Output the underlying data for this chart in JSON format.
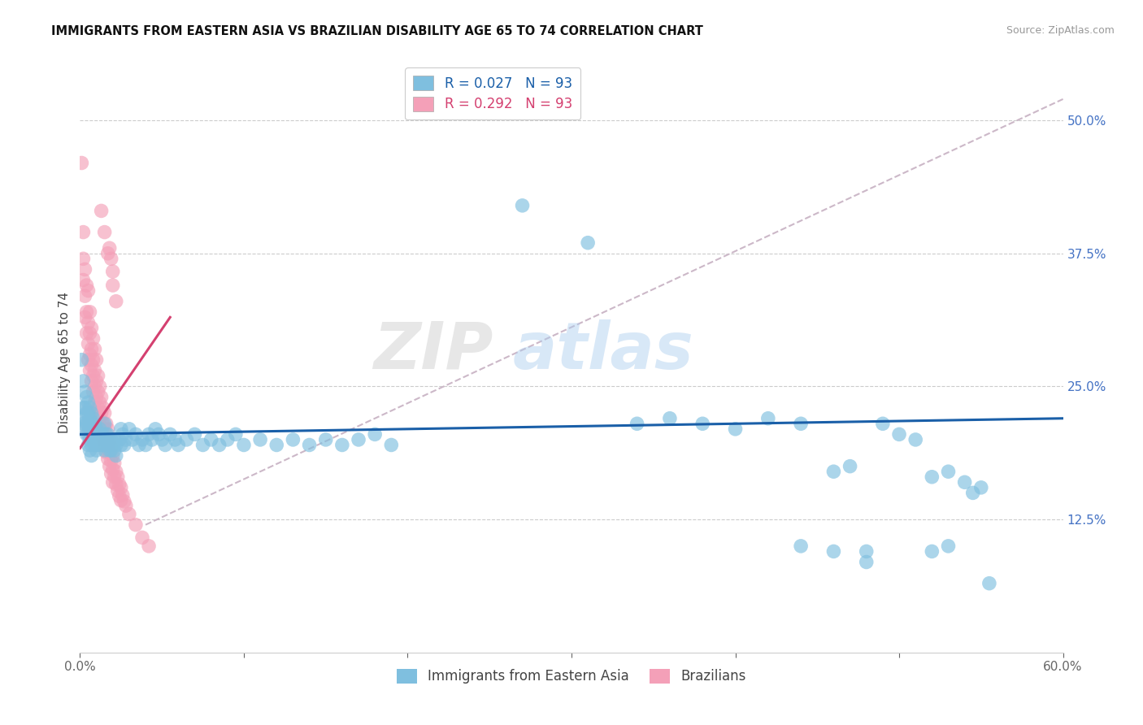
{
  "title": "IMMIGRANTS FROM EASTERN ASIA VS BRAZILIAN DISABILITY AGE 65 TO 74 CORRELATION CHART",
  "source": "Source: ZipAtlas.com",
  "ylabel": "Disability Age 65 to 74",
  "x_min": 0.0,
  "x_max": 0.6,
  "y_min": 0.0,
  "y_max": 0.545,
  "x_ticks": [
    0.0,
    0.1,
    0.2,
    0.3,
    0.4,
    0.5,
    0.6
  ],
  "x_tick_labels": [
    "0.0%",
    "",
    "",
    "",
    "",
    "",
    "60.0%"
  ],
  "y_tick_labels_right": [
    "50.0%",
    "37.5%",
    "25.0%",
    "12.5%"
  ],
  "y_ticks_right": [
    0.5,
    0.375,
    0.25,
    0.125
  ],
  "color_blue": "#7fbfdf",
  "color_pink": "#f4a0b8",
  "color_blue_line": "#1a5fa8",
  "color_pink_line": "#d44070",
  "color_dashed_line": "#ccb8c8",
  "watermark_zip": "ZIP",
  "watermark_atlas": "atlas",
  "blue_points": [
    [
      0.001,
      0.275
    ],
    [
      0.002,
      0.255
    ],
    [
      0.002,
      0.23
    ],
    [
      0.002,
      0.215
    ],
    [
      0.003,
      0.245
    ],
    [
      0.003,
      0.23
    ],
    [
      0.003,
      0.22
    ],
    [
      0.003,
      0.21
    ],
    [
      0.004,
      0.24
    ],
    [
      0.004,
      0.225
    ],
    [
      0.004,
      0.215
    ],
    [
      0.004,
      0.205
    ],
    [
      0.005,
      0.235
    ],
    [
      0.005,
      0.225
    ],
    [
      0.005,
      0.215
    ],
    [
      0.005,
      0.205
    ],
    [
      0.005,
      0.195
    ],
    [
      0.006,
      0.23
    ],
    [
      0.006,
      0.22
    ],
    [
      0.006,
      0.21
    ],
    [
      0.006,
      0.2
    ],
    [
      0.006,
      0.19
    ],
    [
      0.007,
      0.225
    ],
    [
      0.007,
      0.215
    ],
    [
      0.007,
      0.205
    ],
    [
      0.007,
      0.195
    ],
    [
      0.007,
      0.185
    ],
    [
      0.008,
      0.22
    ],
    [
      0.008,
      0.21
    ],
    [
      0.008,
      0.2
    ],
    [
      0.009,
      0.215
    ],
    [
      0.009,
      0.205
    ],
    [
      0.009,
      0.195
    ],
    [
      0.01,
      0.21
    ],
    [
      0.01,
      0.2
    ],
    [
      0.01,
      0.19
    ],
    [
      0.011,
      0.205
    ],
    [
      0.011,
      0.195
    ],
    [
      0.012,
      0.21
    ],
    [
      0.012,
      0.195
    ],
    [
      0.013,
      0.205
    ],
    [
      0.013,
      0.195
    ],
    [
      0.014,
      0.205
    ],
    [
      0.014,
      0.195
    ],
    [
      0.015,
      0.215
    ],
    [
      0.015,
      0.2
    ],
    [
      0.015,
      0.19
    ],
    [
      0.016,
      0.205
    ],
    [
      0.016,
      0.195
    ],
    [
      0.017,
      0.205
    ],
    [
      0.017,
      0.195
    ],
    [
      0.018,
      0.2
    ],
    [
      0.018,
      0.19
    ],
    [
      0.019,
      0.2
    ],
    [
      0.019,
      0.19
    ],
    [
      0.02,
      0.195
    ],
    [
      0.021,
      0.2
    ],
    [
      0.021,
      0.19
    ],
    [
      0.022,
      0.195
    ],
    [
      0.022,
      0.185
    ],
    [
      0.024,
      0.2
    ],
    [
      0.025,
      0.21
    ],
    [
      0.025,
      0.195
    ],
    [
      0.026,
      0.205
    ],
    [
      0.027,
      0.195
    ],
    [
      0.028,
      0.2
    ],
    [
      0.03,
      0.21
    ],
    [
      0.032,
      0.2
    ],
    [
      0.034,
      0.205
    ],
    [
      0.036,
      0.195
    ],
    [
      0.038,
      0.2
    ],
    [
      0.04,
      0.195
    ],
    [
      0.042,
      0.205
    ],
    [
      0.044,
      0.2
    ],
    [
      0.046,
      0.21
    ],
    [
      0.048,
      0.205
    ],
    [
      0.05,
      0.2
    ],
    [
      0.052,
      0.195
    ],
    [
      0.055,
      0.205
    ],
    [
      0.058,
      0.2
    ],
    [
      0.06,
      0.195
    ],
    [
      0.065,
      0.2
    ],
    [
      0.07,
      0.205
    ],
    [
      0.075,
      0.195
    ],
    [
      0.08,
      0.2
    ],
    [
      0.085,
      0.195
    ],
    [
      0.09,
      0.2
    ],
    [
      0.095,
      0.205
    ],
    [
      0.1,
      0.195
    ],
    [
      0.11,
      0.2
    ],
    [
      0.12,
      0.195
    ],
    [
      0.13,
      0.2
    ],
    [
      0.14,
      0.195
    ],
    [
      0.15,
      0.2
    ],
    [
      0.16,
      0.195
    ],
    [
      0.17,
      0.2
    ],
    [
      0.18,
      0.205
    ],
    [
      0.19,
      0.195
    ],
    [
      0.27,
      0.42
    ],
    [
      0.31,
      0.385
    ],
    [
      0.34,
      0.215
    ],
    [
      0.36,
      0.22
    ],
    [
      0.38,
      0.215
    ],
    [
      0.4,
      0.21
    ],
    [
      0.42,
      0.22
    ],
    [
      0.44,
      0.215
    ],
    [
      0.46,
      0.17
    ],
    [
      0.47,
      0.175
    ],
    [
      0.49,
      0.215
    ],
    [
      0.5,
      0.205
    ],
    [
      0.51,
      0.2
    ],
    [
      0.52,
      0.165
    ],
    [
      0.53,
      0.17
    ],
    [
      0.54,
      0.16
    ],
    [
      0.545,
      0.15
    ],
    [
      0.55,
      0.155
    ],
    [
      0.555,
      0.065
    ],
    [
      0.48,
      0.095
    ],
    [
      0.46,
      0.095
    ],
    [
      0.44,
      0.1
    ],
    [
      0.48,
      0.085
    ],
    [
      0.52,
      0.095
    ],
    [
      0.53,
      0.1
    ]
  ],
  "pink_points": [
    [
      0.001,
      0.46
    ],
    [
      0.002,
      0.395
    ],
    [
      0.002,
      0.37
    ],
    [
      0.002,
      0.35
    ],
    [
      0.003,
      0.36
    ],
    [
      0.003,
      0.335
    ],
    [
      0.003,
      0.315
    ],
    [
      0.004,
      0.345
    ],
    [
      0.004,
      0.32
    ],
    [
      0.004,
      0.3
    ],
    [
      0.005,
      0.34
    ],
    [
      0.005,
      0.31
    ],
    [
      0.005,
      0.29
    ],
    [
      0.005,
      0.275
    ],
    [
      0.006,
      0.32
    ],
    [
      0.006,
      0.3
    ],
    [
      0.006,
      0.28
    ],
    [
      0.006,
      0.265
    ],
    [
      0.007,
      0.305
    ],
    [
      0.007,
      0.285
    ],
    [
      0.007,
      0.27
    ],
    [
      0.007,
      0.255
    ],
    [
      0.008,
      0.295
    ],
    [
      0.008,
      0.275
    ],
    [
      0.008,
      0.26
    ],
    [
      0.008,
      0.245
    ],
    [
      0.009,
      0.285
    ],
    [
      0.009,
      0.265
    ],
    [
      0.009,
      0.25
    ],
    [
      0.009,
      0.235
    ],
    [
      0.01,
      0.275
    ],
    [
      0.01,
      0.255
    ],
    [
      0.01,
      0.24
    ],
    [
      0.01,
      0.225
    ],
    [
      0.011,
      0.26
    ],
    [
      0.011,
      0.245
    ],
    [
      0.011,
      0.23
    ],
    [
      0.012,
      0.25
    ],
    [
      0.012,
      0.235
    ],
    [
      0.012,
      0.22
    ],
    [
      0.013,
      0.24
    ],
    [
      0.013,
      0.225
    ],
    [
      0.013,
      0.21
    ],
    [
      0.014,
      0.23
    ],
    [
      0.014,
      0.215
    ],
    [
      0.014,
      0.2
    ],
    [
      0.015,
      0.225
    ],
    [
      0.015,
      0.21
    ],
    [
      0.015,
      0.195
    ],
    [
      0.016,
      0.215
    ],
    [
      0.016,
      0.2
    ],
    [
      0.016,
      0.188
    ],
    [
      0.017,
      0.21
    ],
    [
      0.017,
      0.195
    ],
    [
      0.017,
      0.182
    ],
    [
      0.018,
      0.2
    ],
    [
      0.018,
      0.188
    ],
    [
      0.018,
      0.175
    ],
    [
      0.019,
      0.193
    ],
    [
      0.019,
      0.18
    ],
    [
      0.019,
      0.168
    ],
    [
      0.02,
      0.185
    ],
    [
      0.02,
      0.172
    ],
    [
      0.02,
      0.16
    ],
    [
      0.021,
      0.178
    ],
    [
      0.021,
      0.165
    ],
    [
      0.022,
      0.17
    ],
    [
      0.022,
      0.158
    ],
    [
      0.023,
      0.165
    ],
    [
      0.023,
      0.152
    ],
    [
      0.024,
      0.158
    ],
    [
      0.024,
      0.147
    ],
    [
      0.025,
      0.155
    ],
    [
      0.025,
      0.143
    ],
    [
      0.026,
      0.148
    ],
    [
      0.027,
      0.142
    ],
    [
      0.028,
      0.138
    ],
    [
      0.03,
      0.13
    ],
    [
      0.034,
      0.12
    ],
    [
      0.038,
      0.108
    ],
    [
      0.042,
      0.1
    ],
    [
      0.018,
      0.38
    ],
    [
      0.019,
      0.37
    ],
    [
      0.02,
      0.358
    ],
    [
      0.02,
      0.345
    ],
    [
      0.022,
      0.33
    ],
    [
      0.013,
      0.415
    ],
    [
      0.015,
      0.395
    ],
    [
      0.017,
      0.375
    ]
  ]
}
